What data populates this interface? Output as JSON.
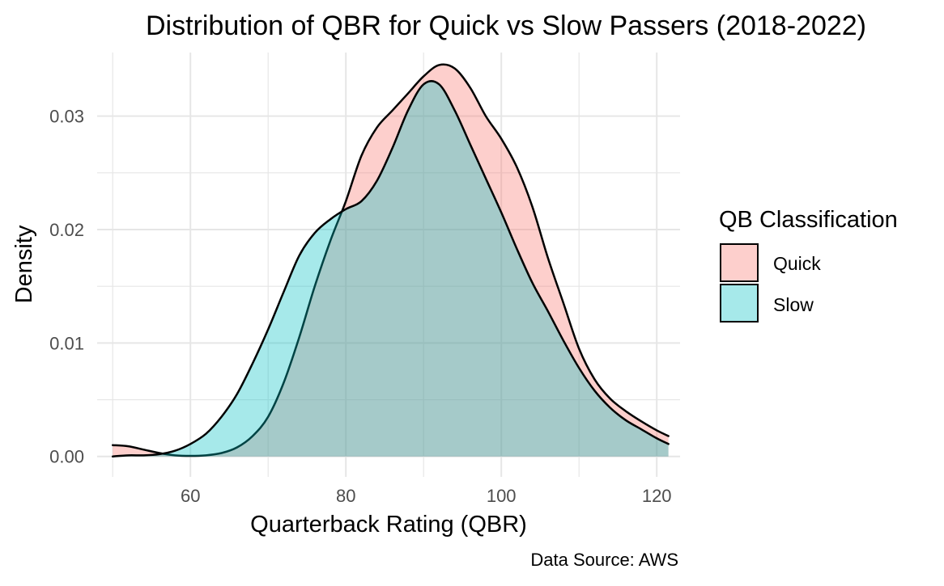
{
  "chart_data": {
    "type": "area",
    "title": "Distribution of QBR for Quick vs Slow Passers (2018-2022)",
    "xlabel": "Quarterback Rating (QBR)",
    "ylabel": "Density",
    "caption": "Data Source: AWS",
    "xlim": [
      48,
      123
    ],
    "ylim": [
      -0.0018,
      0.0356
    ],
    "x_ticks": [
      60,
      80,
      100,
      120
    ],
    "y_ticks": [
      0.0,
      0.01,
      0.02,
      0.03
    ],
    "x_tick_labels": [
      "60",
      "80",
      "100",
      "120"
    ],
    "y_tick_labels": [
      "0.00",
      "0.01",
      "0.02",
      "0.03"
    ],
    "grid": true,
    "legend": {
      "title": "QB Classification",
      "placement": "right"
    },
    "series": [
      {
        "name": "Quick",
        "color": "#F8766D",
        "x": [
          50,
          52,
          54,
          56,
          58,
          60,
          62,
          64,
          66,
          68,
          70,
          72,
          74,
          76,
          78,
          80,
          82,
          84,
          86,
          88,
          90,
          92,
          94,
          96,
          98,
          100,
          102,
          104,
          106,
          108,
          110,
          112,
          114,
          116,
          118,
          120,
          121.5
        ],
        "y": [
          0.001,
          0.0009,
          0.0006,
          0.0003,
          0.0001,
          5e-05,
          0.0001,
          0.0003,
          0.0008,
          0.0018,
          0.0035,
          0.0065,
          0.0105,
          0.015,
          0.019,
          0.0225,
          0.0265,
          0.029,
          0.0305,
          0.032,
          0.0335,
          0.0345,
          0.0342,
          0.0325,
          0.03,
          0.028,
          0.0255,
          0.022,
          0.0175,
          0.0135,
          0.0095,
          0.0068,
          0.0051,
          0.004,
          0.0031,
          0.0023,
          0.0018
        ]
      },
      {
        "name": "Slow",
        "color": "#00BFC4",
        "x": [
          50,
          52,
          54,
          56,
          58,
          60,
          62,
          64,
          66,
          68,
          70,
          72,
          74,
          76,
          78,
          80,
          82,
          84,
          86,
          88,
          90,
          92,
          94,
          96,
          98,
          100,
          102,
          104,
          106,
          108,
          110,
          112,
          114,
          116,
          118,
          120,
          121.5
        ],
        "y": [
          0.0,
          0.0001,
          0.0001,
          0.0002,
          0.0005,
          0.0011,
          0.002,
          0.0035,
          0.0055,
          0.0082,
          0.0112,
          0.0145,
          0.0177,
          0.0197,
          0.0209,
          0.0218,
          0.0225,
          0.0243,
          0.0272,
          0.0305,
          0.0328,
          0.0328,
          0.0305,
          0.0275,
          0.0245,
          0.0215,
          0.0183,
          0.0153,
          0.0128,
          0.0102,
          0.0078,
          0.0058,
          0.0043,
          0.0032,
          0.0024,
          0.0016,
          0.0011
        ]
      }
    ]
  }
}
